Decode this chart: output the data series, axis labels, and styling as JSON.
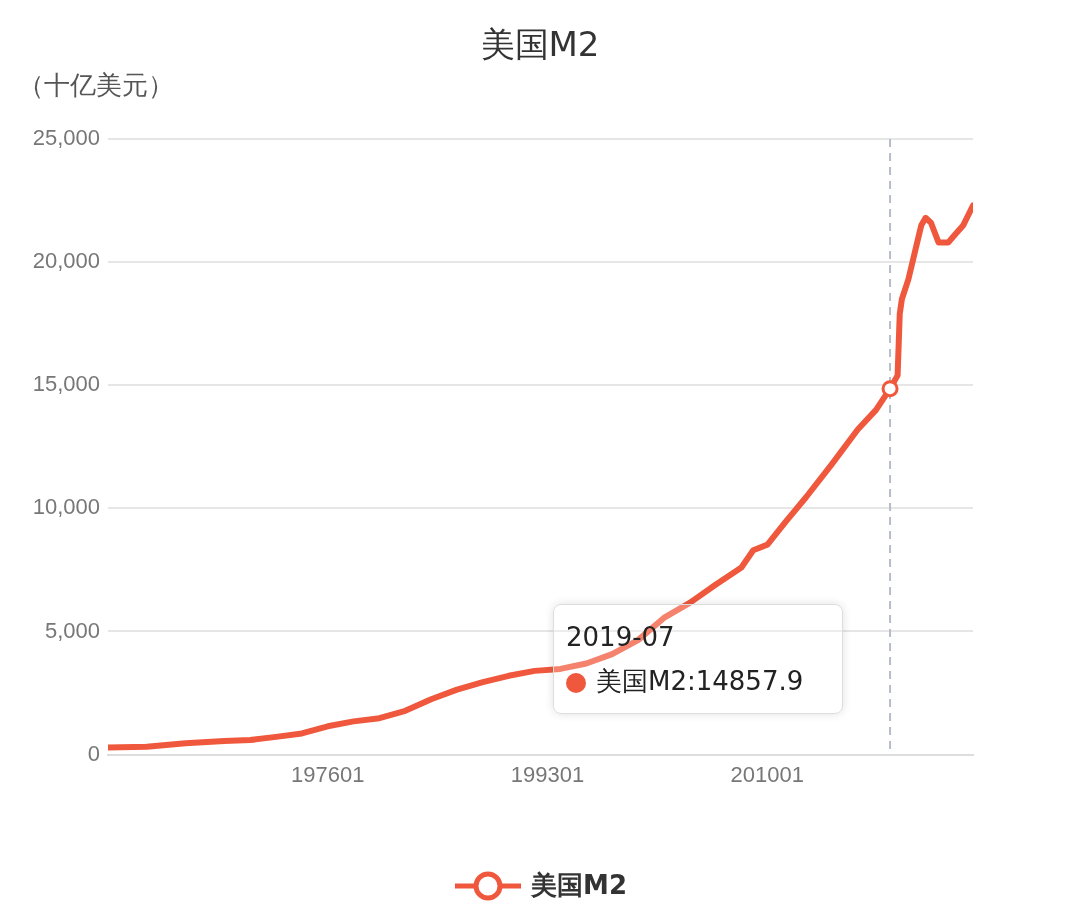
{
  "chart_data": {
    "type": "line",
    "title": "美国M2",
    "ylabel": "（十亿美元）",
    "x": [
      "1959-01",
      "1962-01",
      "1965-01",
      "1968-01",
      "1970-01",
      "1972-01",
      "1974-01",
      "1976-01",
      "1978-01",
      "1980-01",
      "1982-01",
      "1984-01",
      "1986-01",
      "1988-01",
      "1990-01",
      "1992-01",
      "1994-01",
      "1996-01",
      "1998-01",
      "2000-01",
      "2002-01",
      "2004-01",
      "2006-01",
      "2008-01",
      "2008-12",
      "2010-01",
      "2011-06",
      "2013-01",
      "2015-01",
      "2017-01",
      "2018-06",
      "2019-07",
      "2020-02",
      "2020-04",
      "2020-06",
      "2020-12",
      "2021-06",
      "2021-12",
      "2022-04",
      "2022-09",
      "2023-04",
      "2024-01",
      "2024-08",
      "2025-03",
      "2025-12"
    ],
    "series": [
      {
        "name": "美国M2",
        "color": "#f0583d",
        "values": [
          290,
          320,
          460,
          550,
          590,
          720,
          860,
          1150,
          1350,
          1480,
          1780,
          2250,
          2640,
          2940,
          3200,
          3400,
          3480,
          3700,
          4080,
          4650,
          5550,
          6160,
          6900,
          7600,
          8300,
          8520,
          9450,
          10450,
          11800,
          13200,
          14000,
          14860,
          15400,
          17900,
          18500,
          19300,
          20400,
          21500,
          21800,
          21600,
          20800,
          20800,
          21150,
          21500,
          22300
        ]
      }
    ],
    "xlim": [
      "1959-01",
      "2025-12"
    ],
    "xticks": [
      {
        "value": "1976-01",
        "label": "197601"
      },
      {
        "value": "1993-01",
        "label": "199301"
      },
      {
        "value": "2010-01",
        "label": "201001"
      }
    ],
    "ylim": [
      0,
      25000
    ],
    "yticks": [
      0,
      {
        "value": 5000,
        "label": "5,000"
      },
      {
        "value": 10000,
        "label": "10,000"
      },
      {
        "value": 15000,
        "label": "15,000"
      },
      {
        "value": 20000,
        "label": "20,000"
      },
      {
        "value": 25000,
        "label": "25,000"
      }
    ],
    "grid": "y",
    "legend": "bottom",
    "ref_lines": [
      {
        "axis": "x",
        "value": "2019-07",
        "color": "#b8bcc8",
        "line_style": "dashed"
      }
    ],
    "annotations": [
      "2019-07",
      "美国M2:14857.9"
    ]
  }
}
